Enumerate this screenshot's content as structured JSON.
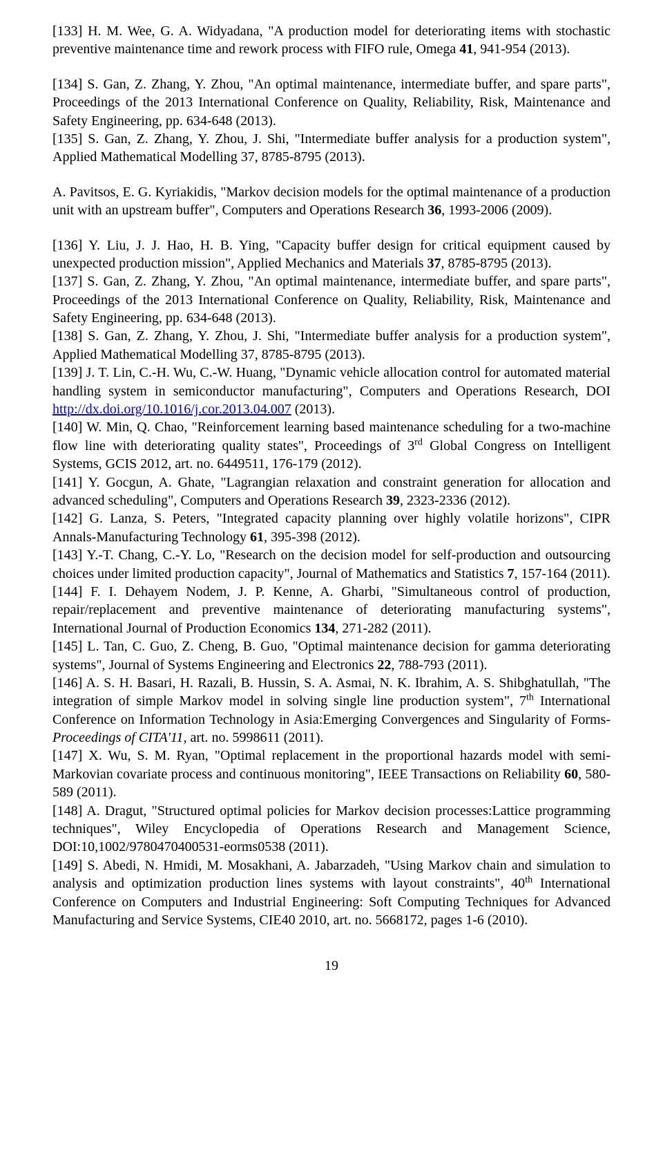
{
  "page_number": "19",
  "link_url_text": "http://dx.doi.org/10.1016/j.cor.2013.04.007",
  "refs": [
    {
      "id": "r133",
      "a": "[133] H. M. Wee, G. A. Widyadana, \"A production model for deteriorating items with stochastic preventive maintenance time and rework process with FIFO rule, Omega ",
      "b_bold": "41",
      "c": ", 941-954 (2013)."
    },
    {
      "id": "r134",
      "a": "[134] S. Gan, Z. Zhang, Y. Zhou, \"An optimal maintenance, intermediate buffer, and spare parts\", Proceedings of the 2013 International Conference on Quality, Reliability, Risk, Maintenance and Safety Engineering, pp. 634-648 (2013)."
    },
    {
      "id": "r135",
      "a": "[135] S. Gan, Z. Zhang, Y. Zhou, J. Shi, \"Intermediate buffer analysis for a production system\", Applied Mathematical Modelling 37, 8785-8795 (2013)."
    },
    {
      "id": "rpav",
      "a": "A. Pavitsos, E. G. Kyriakidis, \"Markov decision models for the optimal maintenance of a production unit with an upstream buffer\", Computers and Operations Research ",
      "b_bold": "36",
      "c": ", 1993-2006 (2009)."
    },
    {
      "id": "r136",
      "a": "[136] Y. Liu, J. J. Hao, H. B. Ying, \"Capacity buffer design for critical equipment caused by unexpected production mission\", Applied Mechanics and Materials ",
      "b_bold": "37",
      "c": ", 8785-8795 (2013)."
    },
    {
      "id": "r137",
      "a": "[137] S. Gan, Z. Zhang, Y. Zhou, \"An optimal maintenance, intermediate buffer, and spare parts\", Proceedings of the 2013 International Conference on Quality, Reliability, Risk, Maintenance and Safety Engineering, pp. 634-648 (2013)."
    },
    {
      "id": "r138",
      "a": "[138] S. Gan, Z. Zhang, Y. Zhou, J. Shi, \"Intermediate buffer analysis for a production system\", Applied Mathematical Modelling 37, 8785-8795 (2013)."
    },
    {
      "id": "r139a",
      "a": "[139] J. T. Lin, C.-H. Wu, C.-W. Huang, \"Dynamic vehicle allocation control for automated material handling system in semiconductor manufacturing\", Computers and Operations Research, DOI "
    },
    {
      "id": "r139b",
      "a": " (2013)."
    },
    {
      "id": "r140a",
      "a": "[140] W. Min, Q. Chao, \"Reinforcement learning based maintenance scheduling for a two-machine flow line with deteriorating quality states\", Proceedings of 3"
    },
    {
      "id": "r140sup",
      "a": "rd"
    },
    {
      "id": "r140b",
      "a": " Global Congress on Intelligent Systems, GCIS 2012, art. no. 6449511, 176-179 (2012)."
    },
    {
      "id": "r141",
      "a": "[141] Y. Gocgun, A. Ghate, \"Lagrangian relaxation and constraint generation for allocation and advanced scheduling\", Computers and Operations Research ",
      "b_bold": "39",
      "c": ", 2323-2336 (2012)."
    },
    {
      "id": "r142",
      "a": "[142] G. Lanza, S. Peters, \"Integrated capacity planning over highly volatile horizons\", CIPR Annals-Manufacturing Technology ",
      "b_bold": "61",
      "c": ", 395-398 (2012)."
    },
    {
      "id": "r143",
      "a": "[143] Y.-T. Chang, C.-Y. Lo, \"Research on the decision model for self-production and outsourcing choices under limited production capacity\", Journal of Mathematics and Statistics ",
      "b_bold": "7",
      "c": ", 157-164 (2011)."
    },
    {
      "id": "r144",
      "a": "[144] F. I. Dehayem Nodem, J. P. Kenne, A. Gharbi, \"Simultaneous control of production, repair/replacement and preventive maintenance of deteriorating manufacturing systems\", International Journal of Production Economics ",
      "b_bold": "134",
      "c": ", 271-282 (2011)."
    },
    {
      "id": "r145",
      "a": "[145] L. Tan, C. Guo, Z. Cheng, B. Guo, \"Optimal maintenance decision for gamma deteriorating systems\", Journal of Systems Engineering and Electronics ",
      "b_bold": "22",
      "c": ", 788-793 (2011)."
    },
    {
      "id": "r146a",
      "a": "[146] A. S. H. Basari, H. Razali, B. Hussin, S. A. Asmai, N. K. Ibrahim, A. S. Shibghatullah, \"The integration of simple Markov model in solving single line production system\", 7"
    },
    {
      "id": "r146sup",
      "a": "th"
    },
    {
      "id": "r146b",
      "a": " International Conference on Information Technology in Asia:Emerging Convergences and Singularity of Forms-"
    },
    {
      "id": "r146c_it",
      "a": "Proceedings of CITA'11"
    },
    {
      "id": "r146d",
      "a": ", art. no. 5998611 (2011)."
    },
    {
      "id": "r147",
      "a": "[147] X. Wu, S. M. Ryan, \"Optimal replacement in the proportional hazards model with semi-Markovian covariate process and continuous monitoring\", IEEE Transactions on Reliability ",
      "b_bold": "60",
      "c": ", 580-589 (2011)."
    },
    {
      "id": "r148",
      "a": "[148] A. Dragut, \"Structured optimal policies for Markov decision processes:Lattice programming techniques\", Wiley Encyclopedia of Operations Research and Management Science, DOI:10,1002/9780470400531-eorms0538 (2011)."
    },
    {
      "id": "r149a",
      "a": "[149] S. Abedi, N. Hmidi, M. Mosakhani, A. Jabarzadeh, \"Using Markov chain and simulation to analysis and optimization production lines systems with layout constraints\", 40"
    },
    {
      "id": "r149sup",
      "a": "th"
    },
    {
      "id": "r149b",
      "a": " International Conference on Computers and Industrial Engineering: Soft Computing Techniques for Advanced Manufacturing and Service Systems, CIE40 2010, art. no. 5668172, pages 1-6 (2010)."
    }
  ]
}
